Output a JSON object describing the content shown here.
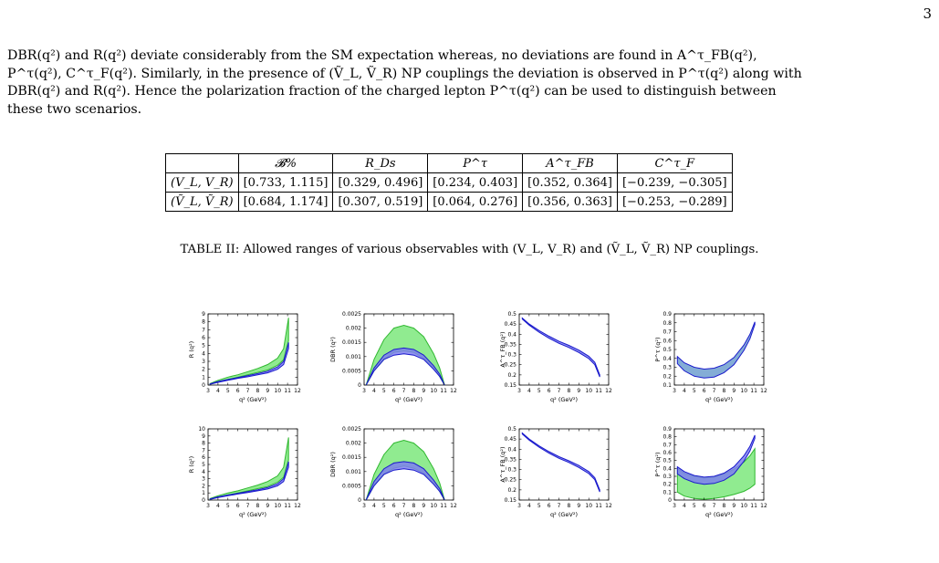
{
  "page_number": "3",
  "paragraph_lines": [
    "DBR(q²) and R(q²) deviate considerably from the SM expectation whereas, no deviations are found in A^τ_FB(q²),",
    "P^τ(q²), C^τ_F(q²). Similarly, in the presence of (Ṽ_L, Ṽ_R) NP couplings the deviation is observed in P^τ(q²) along with",
    "DBR(q²) and R(q²). Hence the polarization fraction of the charged lepton P^τ(q²) can be used to distinguish between",
    "these two scenarios."
  ],
  "table": {
    "headers": [
      "",
      "𝓑%",
      "R_Ds",
      "P^τ",
      "A^τ_FB",
      "C^τ_F"
    ],
    "rows": [
      {
        "label": "(V_L, V_R)",
        "cells": [
          "[0.733, 1.115]",
          "[0.329, 0.496]",
          "[0.234, 0.403]",
          "[0.352, 0.364]",
          "[−0.239, −0.305]"
        ]
      },
      {
        "label": "(Ṽ_L, Ṽ_R)",
        "cells": [
          "[0.684, 1.174]",
          "[0.307, 0.519]",
          "[0.064, 0.276]",
          "[0.356, 0.363]",
          "[−0.253, −0.289]"
        ]
      }
    ]
  },
  "table_caption": "TABLE II: Allowed ranges of various observables with (V_L, V_R) and (Ṽ_L, Ṽ_R) NP couplings.",
  "colors": {
    "band_green": "#7de87d",
    "band_blue": "#7f7ff0",
    "line_blue": "#1a1acc",
    "band_steel": "#6f9fcf"
  },
  "chart_data": [
    {
      "type": "area",
      "row": 1,
      "ylabel": "R (q²)",
      "xlabel": "q² (GeV²)",
      "xlim": [
        3,
        12
      ],
      "ylim": [
        0,
        9
      ],
      "xticks": [
        3,
        4,
        5,
        6,
        7,
        8,
        9,
        10,
        11,
        12
      ],
      "yticks": [
        0,
        1,
        2,
        3,
        4,
        5,
        6,
        7,
        8,
        9
      ],
      "series": [
        {
          "color": "green",
          "x": [
            3.2,
            4,
            5,
            6,
            7,
            8,
            9,
            10,
            10.6,
            11.1
          ],
          "lower": [
            0.1,
            0.4,
            0.7,
            1.0,
            1.3,
            1.6,
            1.9,
            2.5,
            3.2,
            5.6
          ],
          "upper": [
            0.2,
            0.6,
            1.0,
            1.3,
            1.7,
            2.1,
            2.6,
            3.4,
            4.6,
            8.5
          ]
        },
        {
          "color": "blue",
          "x": [
            3.2,
            4,
            5,
            6,
            7,
            8,
            9,
            10,
            10.6,
            11.1
          ],
          "lower": [
            0.1,
            0.35,
            0.6,
            0.85,
            1.05,
            1.3,
            1.55,
            2.0,
            2.6,
            4.6
          ],
          "upper": [
            0.15,
            0.45,
            0.7,
            0.95,
            1.2,
            1.45,
            1.75,
            2.3,
            3.0,
            5.4
          ]
        }
      ]
    },
    {
      "type": "area",
      "row": 1,
      "ylabel": "DBR (q²)",
      "xlabel": "q² (GeV²)",
      "xlim": [
        3,
        12
      ],
      "ylim": [
        0,
        0.0025
      ],
      "xticks": [
        3,
        4,
        5,
        6,
        7,
        8,
        9,
        10,
        11,
        12
      ],
      "yticks_labels": [
        "0",
        "0.0005",
        "0.001",
        "0.0015",
        "0.002",
        "0.0025"
      ],
      "yticks": [
        0,
        0.0005,
        0.001,
        0.0015,
        0.002,
        0.0025
      ],
      "series": [
        {
          "color": "green",
          "x": [
            3.2,
            4,
            5,
            6,
            7,
            8,
            9,
            10,
            10.6,
            11.1
          ],
          "lower": [
            0,
            0.0005,
            0.0009,
            0.00115,
            0.0012,
            0.00115,
            0.00095,
            0.0006,
            0.0003,
            0
          ],
          "upper": [
            0,
            0.0009,
            0.0016,
            0.002,
            0.0021,
            0.002,
            0.0017,
            0.0011,
            0.0006,
            0
          ]
        },
        {
          "color": "blue",
          "x": [
            3.2,
            4,
            5,
            6,
            7,
            8,
            9,
            10,
            10.6,
            11.1
          ],
          "lower": [
            0,
            0.0005,
            0.0009,
            0.00105,
            0.0011,
            0.00105,
            0.0009,
            0.00055,
            0.0003,
            0
          ],
          "upper": [
            0,
            0.0006,
            0.00105,
            0.00125,
            0.0013,
            0.00125,
            0.00105,
            0.00068,
            0.00038,
            0
          ]
        }
      ]
    },
    {
      "type": "area",
      "row": 1,
      "ylabel": "A^τ_FB (q²)",
      "xlabel": "q² (GeV²)",
      "xlim": [
        3,
        12
      ],
      "ylim": [
        0.15,
        0.5
      ],
      "xticks": [
        3,
        4,
        5,
        6,
        7,
        8,
        9,
        10,
        11,
        12
      ],
      "yticks": [
        0.15,
        0.2,
        0.25,
        0.3,
        0.35,
        0.4,
        0.45,
        0.5
      ],
      "series": [
        {
          "color": "blue",
          "x": [
            3.3,
            4,
            5,
            6,
            7,
            8,
            9,
            10,
            10.6,
            11.1
          ],
          "lower": [
            0.475,
            0.445,
            0.41,
            0.38,
            0.355,
            0.335,
            0.31,
            0.28,
            0.25,
            0.19
          ],
          "upper": [
            0.48,
            0.45,
            0.418,
            0.39,
            0.365,
            0.345,
            0.322,
            0.292,
            0.262,
            0.2
          ]
        }
      ]
    },
    {
      "type": "area",
      "row": 1,
      "ylabel": "P^τ (q²)",
      "xlabel": "q² (GeV²)",
      "xlim": [
        3,
        12
      ],
      "ylim": [
        0.1,
        0.9
      ],
      "xticks": [
        3,
        4,
        5,
        6,
        7,
        8,
        9,
        10,
        11,
        12
      ],
      "yticks": [
        0.1,
        0.2,
        0.3,
        0.4,
        0.5,
        0.6,
        0.7,
        0.8,
        0.9
      ],
      "series": [
        {
          "color": "steel",
          "x": [
            3.3,
            4,
            5,
            6,
            7,
            8,
            9,
            10,
            10.6,
            11.1
          ],
          "lower": [
            0.34,
            0.26,
            0.2,
            0.18,
            0.19,
            0.24,
            0.33,
            0.49,
            0.62,
            0.78
          ],
          "upper": [
            0.42,
            0.35,
            0.3,
            0.28,
            0.29,
            0.33,
            0.41,
            0.55,
            0.67,
            0.81
          ]
        }
      ]
    },
    {
      "type": "area",
      "row": 2,
      "ylabel": "R (q²)",
      "xlabel": "q² (GeV²)",
      "xlim": [
        3,
        12
      ],
      "ylim": [
        0,
        10
      ],
      "xticks": [
        3,
        4,
        5,
        6,
        7,
        8,
        9,
        10,
        11,
        12
      ],
      "yticks": [
        0,
        1,
        2,
        3,
        4,
        5,
        6,
        7,
        8,
        9,
        10
      ],
      "series": [
        {
          "color": "green",
          "x": [
            3.2,
            4,
            5,
            6,
            7,
            8,
            9,
            10,
            10.6,
            11.1
          ],
          "lower": [
            0.1,
            0.4,
            0.7,
            1.0,
            1.3,
            1.6,
            1.9,
            2.5,
            3.2,
            5.6
          ],
          "upper": [
            0.2,
            0.6,
            1.0,
            1.3,
            1.7,
            2.1,
            2.6,
            3.4,
            4.6,
            8.8
          ]
        },
        {
          "color": "blue",
          "x": [
            3.2,
            4,
            5,
            6,
            7,
            8,
            9,
            10,
            10.6,
            11.1
          ],
          "lower": [
            0.1,
            0.35,
            0.6,
            0.85,
            1.05,
            1.3,
            1.55,
            2.0,
            2.6,
            4.6
          ],
          "upper": [
            0.15,
            0.45,
            0.7,
            0.95,
            1.2,
            1.45,
            1.75,
            2.3,
            3.0,
            5.4
          ]
        }
      ]
    },
    {
      "type": "area",
      "row": 2,
      "ylabel": "DBR (q²)",
      "xlabel": "q² (GeV²)",
      "xlim": [
        3,
        12
      ],
      "ylim": [
        0,
        0.0025
      ],
      "xticks": [
        3,
        4,
        5,
        6,
        7,
        8,
        9,
        10,
        11,
        12
      ],
      "yticks_labels": [
        "0",
        "0.0005",
        "0.001",
        "0.0015",
        "0.002",
        "0.0025"
      ],
      "yticks": [
        0,
        0.0005,
        0.001,
        0.0015,
        0.002,
        0.0025
      ],
      "series": [
        {
          "color": "green",
          "x": [
            3.2,
            4,
            5,
            6,
            7,
            8,
            9,
            10,
            10.6,
            11.1
          ],
          "lower": [
            0,
            0.0005,
            0.0009,
            0.00112,
            0.0012,
            0.00112,
            0.00095,
            0.0006,
            0.0003,
            0
          ],
          "upper": [
            0,
            0.0009,
            0.0016,
            0.002,
            0.0021,
            0.002,
            0.0017,
            0.0011,
            0.0006,
            0
          ]
        },
        {
          "color": "blue",
          "x": [
            3.2,
            4,
            5,
            6,
            7,
            8,
            9,
            10,
            10.6,
            11.1
          ],
          "lower": [
            0,
            0.0005,
            0.0009,
            0.00105,
            0.0011,
            0.00105,
            0.0009,
            0.00055,
            0.0003,
            0
          ],
          "upper": [
            0,
            0.00065,
            0.0011,
            0.0013,
            0.00135,
            0.0013,
            0.0011,
            0.0007,
            0.0004,
            0
          ]
        }
      ]
    },
    {
      "type": "area",
      "row": 2,
      "ylabel": "A^τ_FB (q²)",
      "xlabel": "q² (GeV²)",
      "xlim": [
        3,
        12
      ],
      "ylim": [
        0.15,
        0.5
      ],
      "xticks": [
        3,
        4,
        5,
        6,
        7,
        8,
        9,
        10,
        11,
        12
      ],
      "yticks": [
        0.15,
        0.2,
        0.25,
        0.3,
        0.35,
        0.4,
        0.45,
        0.5
      ],
      "series": [
        {
          "color": "blue",
          "x": [
            3.3,
            4,
            5,
            6,
            7,
            8,
            9,
            10,
            10.6,
            11.1
          ],
          "lower": [
            0.475,
            0.445,
            0.41,
            0.38,
            0.355,
            0.335,
            0.31,
            0.28,
            0.25,
            0.19
          ],
          "upper": [
            0.48,
            0.45,
            0.416,
            0.388,
            0.363,
            0.343,
            0.32,
            0.29,
            0.26,
            0.2
          ]
        }
      ]
    },
    {
      "type": "area",
      "row": 2,
      "ylabel": "P^τ (q²)",
      "xlabel": "q² (GeV²)",
      "xlim": [
        3,
        12
      ],
      "ylim": [
        0,
        0.9
      ],
      "xticks": [
        3,
        4,
        5,
        6,
        7,
        8,
        9,
        10,
        11,
        12
      ],
      "yticks": [
        0,
        0.1,
        0.2,
        0.3,
        0.4,
        0.5,
        0.6,
        0.7,
        0.8,
        0.9
      ],
      "series": [
        {
          "color": "green",
          "x": [
            3.3,
            4,
            5,
            6,
            7,
            8,
            9,
            10,
            10.6,
            11.1
          ],
          "lower": [
            0.1,
            0.05,
            0.02,
            0.01,
            0.02,
            0.04,
            0.07,
            0.11,
            0.15,
            0.2
          ],
          "upper": [
            0.4,
            0.34,
            0.3,
            0.28,
            0.29,
            0.33,
            0.39,
            0.48,
            0.56,
            0.65
          ]
        },
        {
          "color": "blue",
          "x": [
            3.3,
            4,
            5,
            6,
            7,
            8,
            9,
            10,
            10.6,
            11.1
          ],
          "lower": [
            0.33,
            0.27,
            0.22,
            0.2,
            0.21,
            0.25,
            0.33,
            0.49,
            0.62,
            0.78
          ],
          "upper": [
            0.42,
            0.36,
            0.31,
            0.29,
            0.3,
            0.34,
            0.42,
            0.56,
            0.68,
            0.82
          ]
        }
      ]
    }
  ]
}
